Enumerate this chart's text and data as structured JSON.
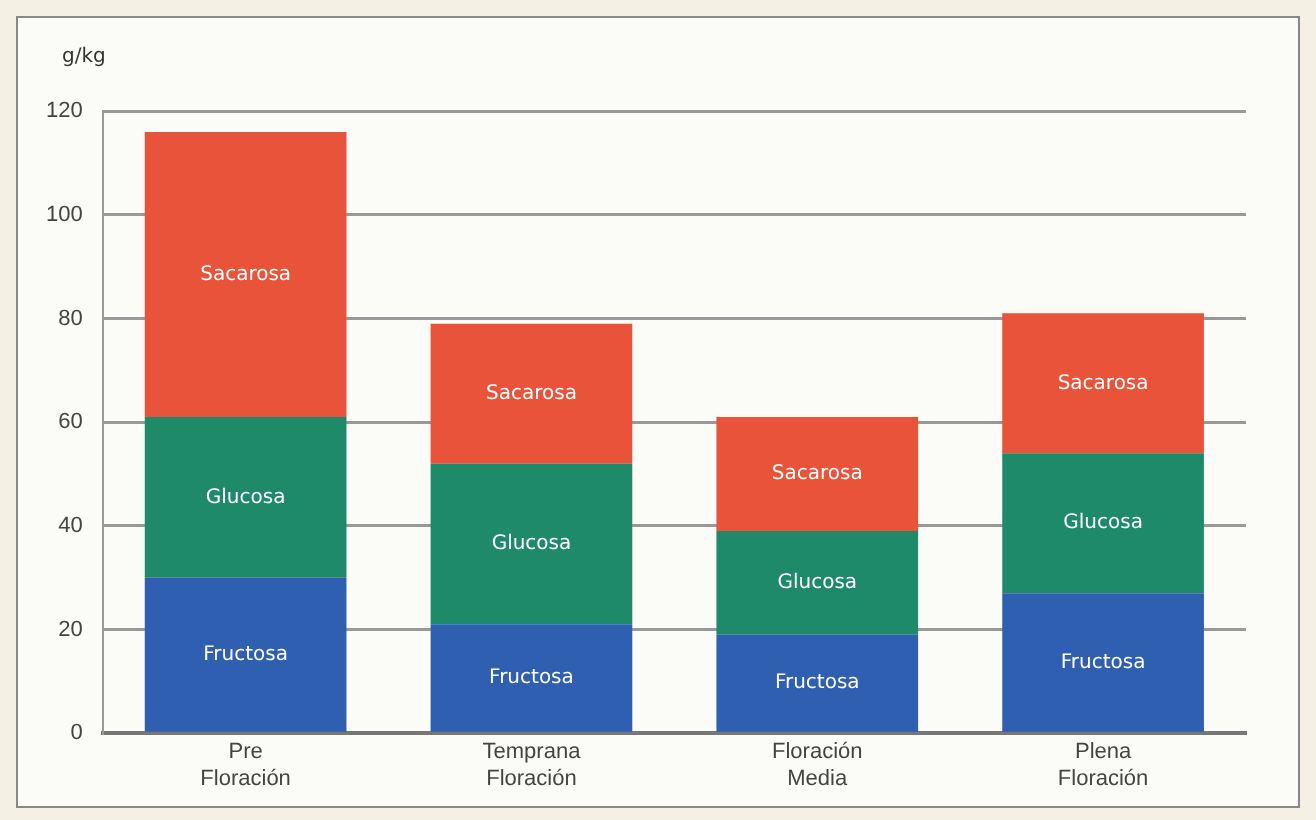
{
  "chart_data": {
    "type": "bar",
    "stacked": true,
    "ylabel": "g/kg",
    "categories": [
      "Pre\nFloración",
      "Temprana\nFloración",
      "Floración\nMedia",
      "Plena\nFloración"
    ],
    "series": [
      {
        "name": "Fructosa",
        "color": "#2f5fb0",
        "values": [
          30,
          21,
          19,
          27
        ]
      },
      {
        "name": "Glucosa",
        "color": "#1f8a6a",
        "values": [
          31,
          31,
          20,
          27
        ]
      },
      {
        "name": "Sacarosa",
        "color": "#e8533a",
        "values": [
          55,
          27,
          22,
          27
        ]
      }
    ],
    "ylim": [
      0,
      120
    ],
    "yticks": [
      0,
      20,
      40,
      60,
      80,
      100,
      120
    ],
    "grid": "y",
    "legend": false
  }
}
